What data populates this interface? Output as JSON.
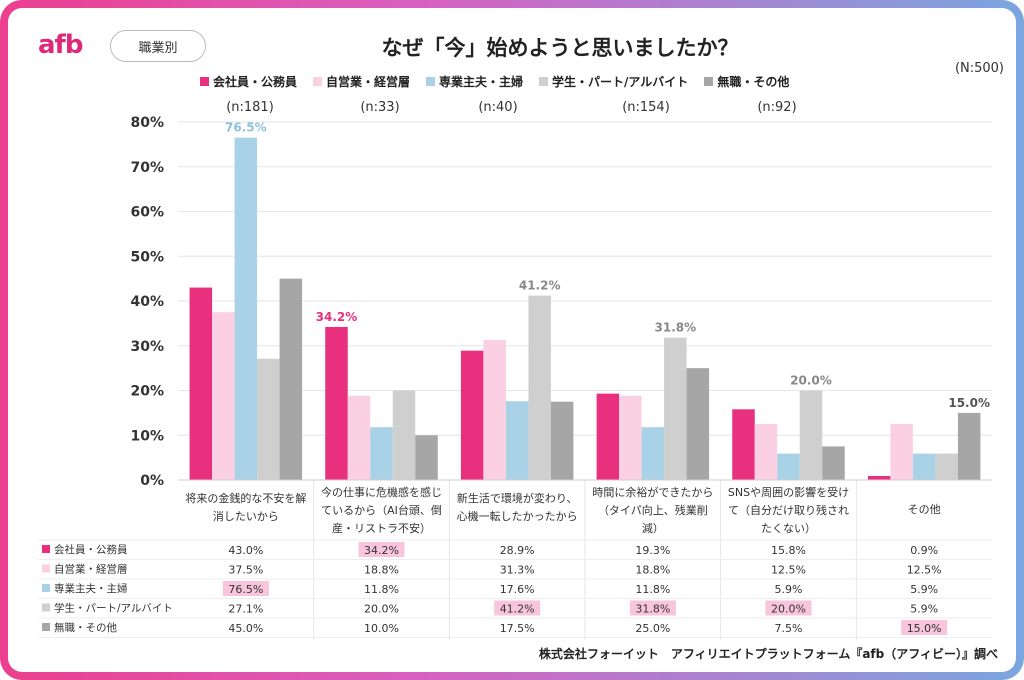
{
  "header": {
    "logo": "afb",
    "tag": "職業別",
    "title": "なぜ「今」始めようと思いましたか？",
    "total": "(N:500)"
  },
  "footer": "株式会社フォーイット　アフィリエイトプラットフォーム『afb（アフィビー）』調べ",
  "colors": {
    "会社員・公務員": "#e8307e",
    "自営業・経営層": "#fbd0e2",
    "専業主夫・主婦": "#a9d2e6",
    "学生・パート/アルバイト": "#cfcfcf",
    "無職・その他": "#a6a6a6",
    "highlight": "#f8c5dc"
  },
  "chart_data": {
    "type": "bar",
    "ylim": [
      0,
      80
    ],
    "yticks": [
      "0%",
      "10%",
      "20%",
      "30%",
      "40%",
      "50%",
      "60%",
      "70%",
      "80%"
    ],
    "categories": [
      [
        "将来の金銭的な不安を解",
        "消したいから"
      ],
      [
        "今の仕事に危機感を感じ",
        "ているから（AI台頭、倒",
        "産・リストラ不安）"
      ],
      [
        "新生活で環境が変わり、",
        "心機一転したかったから"
      ],
      [
        "時間に余裕ができたから",
        "（タイパ向上、残業削",
        "減）"
      ],
      [
        "SNSや周囲の影響を受け",
        "て（自分だけ取り残され",
        "たくない）"
      ],
      [
        "その他"
      ]
    ],
    "series": [
      {
        "name": "会社員・公務員",
        "n": "(n:181)",
        "values": [
          43.0,
          34.2,
          28.9,
          19.3,
          15.8,
          0.9
        ],
        "labels": [
          "43.0%",
          "34.2%",
          "28.9%",
          "19.3%",
          "15.8%",
          "0.9%"
        ]
      },
      {
        "name": "自営業・経営層",
        "n": "(n:33)",
        "values": [
          37.5,
          18.8,
          31.3,
          18.8,
          12.5,
          12.5
        ],
        "labels": [
          "37.5%",
          "18.8%",
          "31.3%",
          "18.8%",
          "12.5%",
          "12.5%"
        ]
      },
      {
        "name": "専業主夫・主婦",
        "n": "(n:40)",
        "values": [
          76.5,
          11.8,
          17.6,
          11.8,
          5.9,
          5.9
        ],
        "labels": [
          "76.5%",
          "11.8%",
          "17.6%",
          "11.8%",
          "5.9%",
          "5.9%"
        ]
      },
      {
        "name": "学生・パート/アルバイト",
        "n": "(n:154)",
        "values": [
          27.1,
          20.0,
          41.2,
          31.8,
          20.0,
          5.9
        ],
        "labels": [
          "27.1%",
          "20.0%",
          "41.2%",
          "31.8%",
          "20.0%",
          "5.9%"
        ]
      },
      {
        "name": "無職・その他",
        "n": "(n:92)",
        "values": [
          45.0,
          10.0,
          17.5,
          25.0,
          7.5,
          15.0
        ],
        "labels": [
          "45.0%",
          "10.0%",
          "17.5%",
          "25.0%",
          "7.5%",
          "15.0%"
        ]
      }
    ],
    "legend_labels": [
      "会社員・公務員",
      "自営業・経営層",
      "専業主夫・主婦",
      "学生・パート/アルバイト",
      "無職・その他"
    ],
    "annotations": [
      {
        "series": 2,
        "category": 0,
        "label": "76.5%"
      },
      {
        "series": 0,
        "category": 1,
        "label": "34.2%"
      },
      {
        "series": 3,
        "category": 2,
        "label": "41.2%"
      },
      {
        "series": 3,
        "category": 3,
        "label": "31.8%"
      },
      {
        "series": 3,
        "category": 4,
        "label": "20.0%"
      },
      {
        "series": 4,
        "category": 5,
        "label": "15.0%"
      }
    ],
    "table_highlights": [
      {
        "series": 0,
        "category": 1
      },
      {
        "series": 2,
        "category": 0
      },
      {
        "series": 3,
        "category": 2
      },
      {
        "series": 3,
        "category": 3
      },
      {
        "series": 3,
        "category": 4
      },
      {
        "series": 4,
        "category": 5
      }
    ],
    "legend_position": "top",
    "grid": true
  }
}
